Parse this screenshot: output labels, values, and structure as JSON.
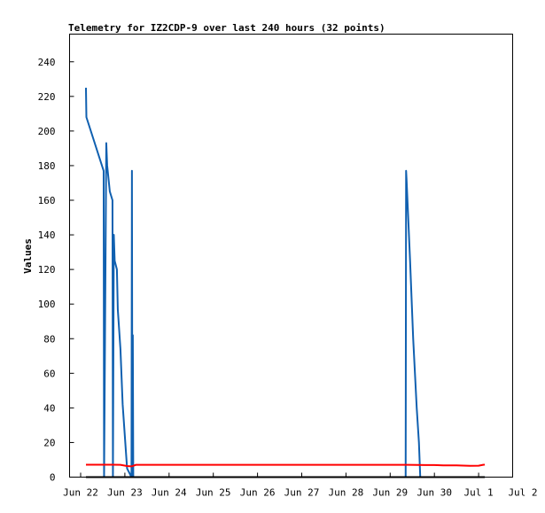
{
  "chart_data": {
    "type": "line",
    "title": "Telemetry for IZ2CDP-9 over last 240 hours (32 points)",
    "xlabel": "",
    "ylabel": "Values",
    "x_ticks": [
      "Jun 22",
      "Jun 23",
      "Jun 24",
      "Jun 25",
      "Jun 26",
      "Jun 27",
      "Jun 28",
      "Jun 29",
      "Jun 30",
      "Jul 1",
      "Jul 2"
    ],
    "x_range_days": [
      0,
      10
    ],
    "y_ticks": [
      0,
      20,
      40,
      60,
      80,
      100,
      120,
      140,
      160,
      180,
      200,
      220,
      240
    ],
    "ylim": [
      0,
      256
    ],
    "grid": false,
    "legend": "none",
    "series": [
      {
        "color": "#1060b0",
        "points": [
          [
            0.12,
            225
          ],
          [
            0.13,
            208
          ],
          [
            0.52,
            177
          ],
          [
            0.53,
            0
          ],
          [
            0.58,
            193
          ],
          [
            0.6,
            180
          ],
          [
            0.62,
            175
          ],
          [
            0.66,
            165
          ],
          [
            0.72,
            160
          ],
          [
            0.73,
            0
          ],
          [
            0.75,
            140
          ],
          [
            0.77,
            125
          ],
          [
            0.82,
            120
          ],
          [
            0.84,
            97
          ],
          [
            0.9,
            74
          ],
          [
            0.95,
            42
          ],
          [
            1.05,
            5
          ],
          [
            1.15,
            0
          ],
          [
            1.16,
            177
          ],
          [
            1.17,
            0
          ],
          [
            1.18,
            82
          ],
          [
            1.19,
            0
          ],
          [
            7.35,
            0
          ],
          [
            7.36,
            177
          ],
          [
            7.37,
            172
          ],
          [
            7.45,
            125
          ],
          [
            7.52,
            80
          ],
          [
            7.6,
            40
          ],
          [
            7.65,
            20
          ],
          [
            7.68,
            0
          ],
          [
            9.1,
            0
          ],
          [
            9.14,
            0
          ]
        ]
      },
      {
        "color": "#ff0000",
        "points": [
          [
            0.12,
            7.2
          ],
          [
            0.7,
            7.2
          ],
          [
            0.9,
            7.1
          ],
          [
            1.05,
            6.4
          ],
          [
            1.15,
            6.2
          ],
          [
            1.25,
            7.1
          ],
          [
            2.5,
            7.1
          ],
          [
            4,
            7.1
          ],
          [
            5.5,
            7.1
          ],
          [
            6.5,
            7.1
          ],
          [
            7.4,
            7.1
          ],
          [
            7.8,
            7.0
          ],
          [
            8.0,
            7.0
          ],
          [
            8.2,
            6.8
          ],
          [
            8.5,
            6.8
          ],
          [
            8.8,
            6.5
          ],
          [
            9.0,
            6.6
          ],
          [
            9.1,
            7.1
          ],
          [
            9.14,
            7.2
          ]
        ]
      },
      {
        "color": "#000000",
        "points": [
          [
            0.12,
            0
          ],
          [
            9.14,
            0
          ]
        ]
      }
    ]
  }
}
